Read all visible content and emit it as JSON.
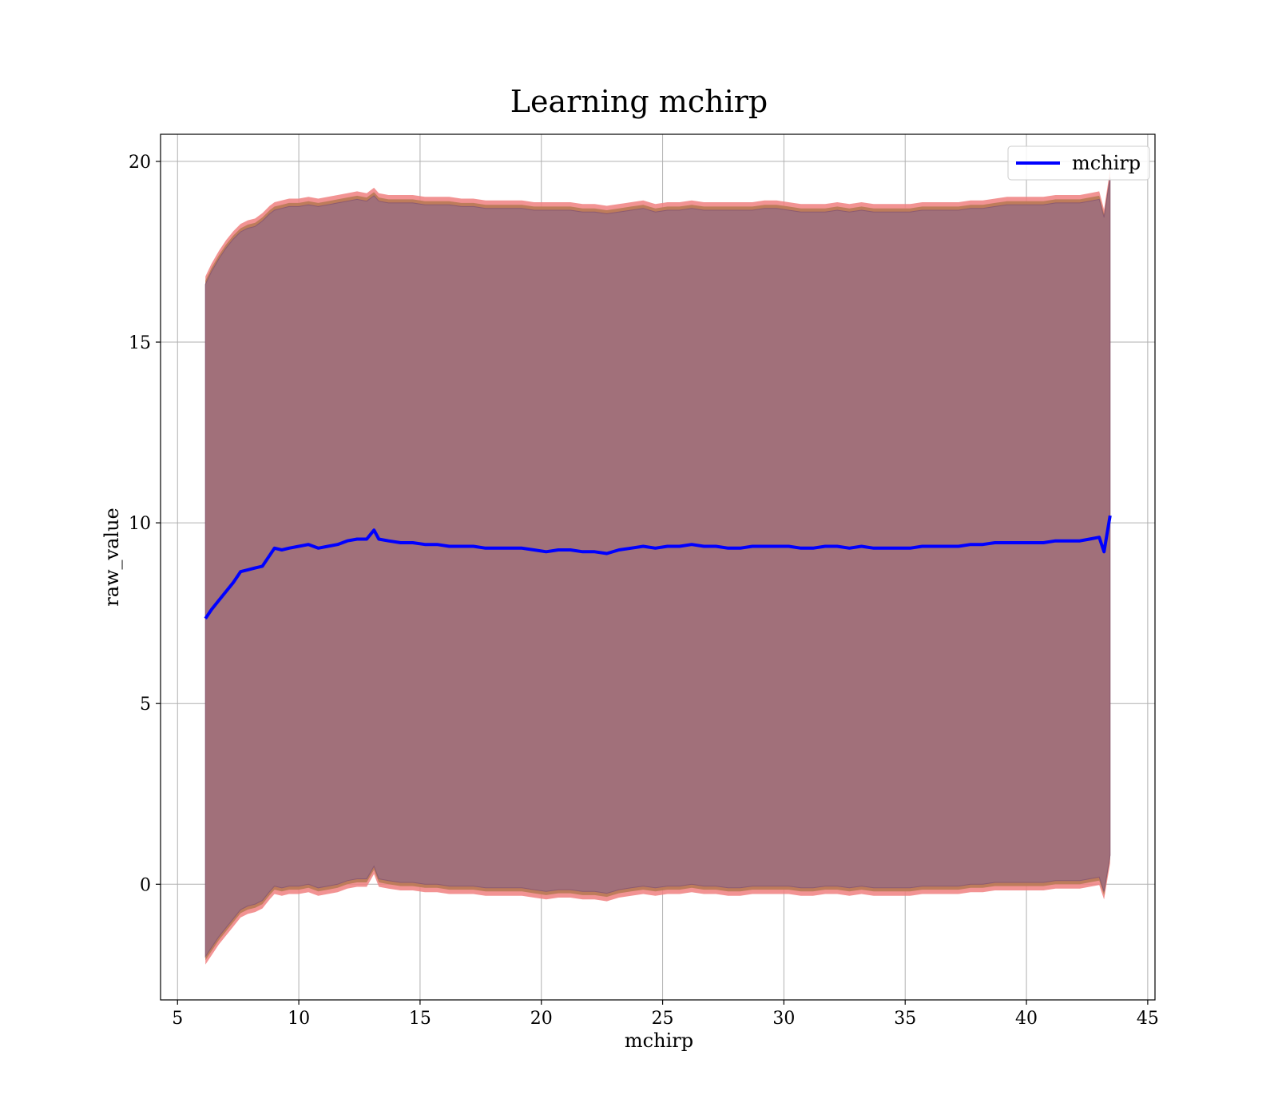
{
  "chart_data": {
    "type": "area",
    "title": "Learning mchirp",
    "xlabel": "mchirp",
    "ylabel": "raw_value",
    "xlim": [
      4.3,
      45.3
    ],
    "ylim": [
      -3.2,
      20.75
    ],
    "xticks": [
      5,
      10,
      15,
      20,
      25,
      30,
      35,
      40,
      45
    ],
    "yticks": [
      0,
      5,
      10,
      15,
      20
    ],
    "grid": true,
    "legend": {
      "position": "top-right",
      "entries": [
        "mchirp"
      ]
    },
    "colors": {
      "line": "#0000ff",
      "band_outer": "#f08080",
      "band_mid": "#b87a55",
      "band_inner": "#a1707a",
      "band_inner_edge": "#8c5a70"
    },
    "series": [
      {
        "name": "mchirp",
        "x": [
          6.15,
          6.4,
          6.7,
          7.0,
          7.3,
          7.6,
          7.9,
          8.2,
          8.5,
          8.8,
          9.0,
          9.3,
          9.6,
          10.0,
          10.4,
          10.8,
          11.2,
          11.6,
          12.0,
          12.4,
          12.8,
          13.1,
          13.3,
          13.7,
          14.2,
          14.7,
          15.2,
          15.7,
          16.2,
          16.7,
          17.2,
          17.7,
          18.2,
          18.7,
          19.2,
          19.7,
          20.2,
          20.7,
          21.2,
          21.7,
          22.2,
          22.7,
          23.2,
          23.7,
          24.2,
          24.7,
          25.2,
          25.7,
          26.2,
          26.7,
          27.2,
          27.7,
          28.2,
          28.7,
          29.2,
          29.7,
          30.2,
          30.7,
          31.2,
          31.7,
          32.2,
          32.7,
          33.2,
          33.7,
          34.2,
          34.7,
          35.2,
          35.7,
          36.2,
          36.7,
          37.2,
          37.7,
          38.2,
          38.7,
          39.2,
          39.7,
          40.2,
          40.7,
          41.2,
          41.7,
          42.2,
          42.6,
          43.0,
          43.2,
          43.45
        ],
        "y": [
          7.35,
          7.6,
          7.85,
          8.1,
          8.35,
          8.65,
          8.7,
          8.75,
          8.8,
          9.1,
          9.3,
          9.25,
          9.3,
          9.35,
          9.4,
          9.3,
          9.35,
          9.4,
          9.5,
          9.55,
          9.55,
          9.8,
          9.55,
          9.5,
          9.45,
          9.45,
          9.4,
          9.4,
          9.35,
          9.35,
          9.35,
          9.3,
          9.3,
          9.3,
          9.3,
          9.25,
          9.2,
          9.25,
          9.25,
          9.2,
          9.2,
          9.15,
          9.25,
          9.3,
          9.35,
          9.3,
          9.35,
          9.35,
          9.4,
          9.35,
          9.35,
          9.3,
          9.3,
          9.35,
          9.35,
          9.35,
          9.35,
          9.3,
          9.3,
          9.35,
          9.35,
          9.3,
          9.35,
          9.3,
          9.3,
          9.3,
          9.3,
          9.35,
          9.35,
          9.35,
          9.35,
          9.4,
          9.4,
          9.45,
          9.45,
          9.45,
          9.45,
          9.45,
          9.5,
          9.5,
          9.5,
          9.55,
          9.6,
          9.2,
          10.2
        ],
        "upper": [
          16.6,
          16.95,
          17.3,
          17.6,
          17.85,
          18.05,
          18.15,
          18.2,
          18.35,
          18.55,
          18.65,
          18.7,
          18.75,
          18.75,
          18.8,
          18.75,
          18.8,
          18.85,
          18.9,
          18.95,
          18.9,
          19.05,
          18.9,
          18.85,
          18.85,
          18.85,
          18.8,
          18.8,
          18.8,
          18.75,
          18.75,
          18.7,
          18.7,
          18.7,
          18.7,
          18.65,
          18.65,
          18.65,
          18.65,
          18.6,
          18.6,
          18.55,
          18.6,
          18.65,
          18.7,
          18.6,
          18.65,
          18.65,
          18.7,
          18.65,
          18.65,
          18.65,
          18.65,
          18.65,
          18.7,
          18.7,
          18.65,
          18.6,
          18.6,
          18.6,
          18.65,
          18.6,
          18.65,
          18.6,
          18.6,
          18.6,
          18.6,
          18.65,
          18.65,
          18.65,
          18.65,
          18.7,
          18.7,
          18.75,
          18.8,
          18.8,
          18.8,
          18.8,
          18.85,
          18.85,
          18.85,
          18.9,
          18.95,
          18.45,
          19.55
        ],
        "lower": [
          -2.0,
          -1.75,
          -1.45,
          -1.2,
          -0.95,
          -0.7,
          -0.6,
          -0.55,
          -0.45,
          -0.2,
          -0.05,
          -0.1,
          -0.05,
          -0.05,
          0.0,
          -0.1,
          -0.05,
          0.0,
          0.1,
          0.15,
          0.15,
          0.5,
          0.15,
          0.1,
          0.05,
          0.05,
          0.0,
          0.0,
          -0.05,
          -0.05,
          -0.05,
          -0.1,
          -0.1,
          -0.1,
          -0.1,
          -0.15,
          -0.2,
          -0.15,
          -0.15,
          -0.2,
          -0.2,
          -0.25,
          -0.15,
          -0.1,
          -0.05,
          -0.1,
          -0.05,
          -0.05,
          0.0,
          -0.05,
          -0.05,
          -0.1,
          -0.1,
          -0.05,
          -0.05,
          -0.05,
          -0.05,
          -0.1,
          -0.1,
          -0.05,
          -0.05,
          -0.1,
          -0.05,
          -0.1,
          -0.1,
          -0.1,
          -0.1,
          -0.05,
          -0.05,
          -0.05,
          -0.05,
          0.0,
          0.0,
          0.05,
          0.05,
          0.05,
          0.05,
          0.05,
          0.1,
          0.1,
          0.1,
          0.15,
          0.2,
          -0.2,
          0.8
        ]
      }
    ]
  }
}
